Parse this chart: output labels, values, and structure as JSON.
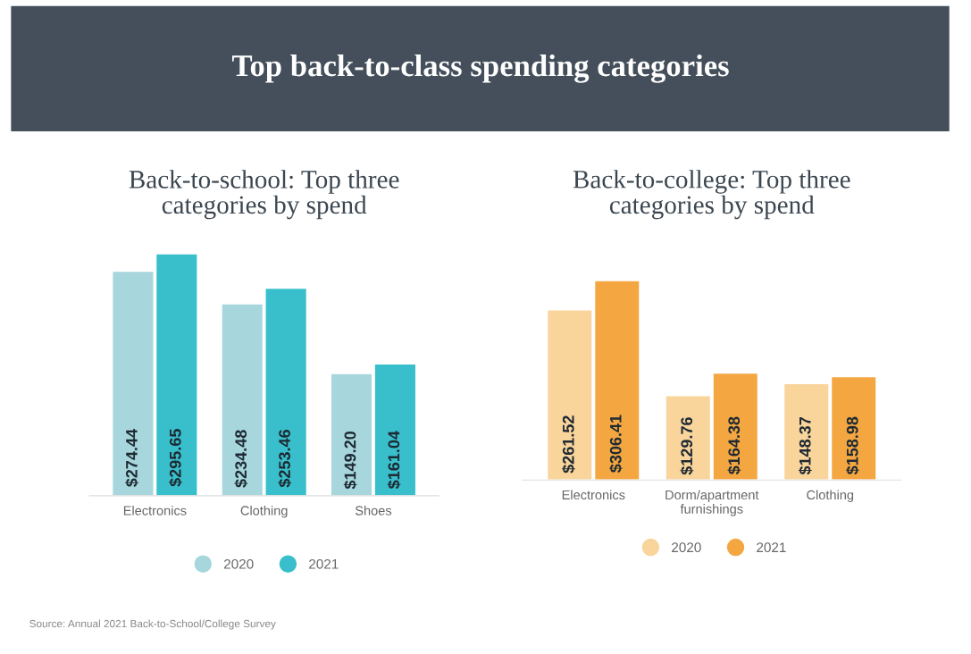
{
  "chart_data": [
    {
      "type": "bar",
      "title": "Back-to-school: Top three\ncategories by spend",
      "categories": [
        "Electronics",
        "Clothing",
        "Shoes"
      ],
      "series": [
        {
          "name": "2020",
          "color": "#a7d6dd",
          "values": [
            274.44,
            234.48,
            149.2
          ],
          "value_labels": [
            "$274.44",
            "$234.48",
            "$149.20"
          ]
        },
        {
          "name": "2021",
          "color": "#38bfcb",
          "values": [
            295.65,
            253.46,
            161.04
          ],
          "value_labels": [
            "$295.65",
            "$253.46",
            "$161.04"
          ]
        }
      ],
      "legend": "bottom",
      "annotations": [
        "Top back-to-class spending categories",
        "Source: Annual 2021 Back-to-School/College Survey"
      ]
    },
    {
      "type": "bar",
      "title": "Back-to-college: Top three\ncategories by spend",
      "categories": [
        "Electronics",
        "Dorm/apartment\nfurnishings",
        "Clothing"
      ],
      "series": [
        {
          "name": "2020",
          "color": "#f9d49b",
          "values": [
            261.52,
            129.76,
            148.37
          ],
          "value_labels": [
            "$261.52",
            "$129.76",
            "$148.37"
          ]
        },
        {
          "name": "2021",
          "color": "#f4a641",
          "values": [
            306.41,
            164.38,
            158.98
          ],
          "value_labels": [
            "$306.41",
            "$164.38",
            "$158.98"
          ]
        }
      ],
      "legend": "bottom"
    }
  ]
}
